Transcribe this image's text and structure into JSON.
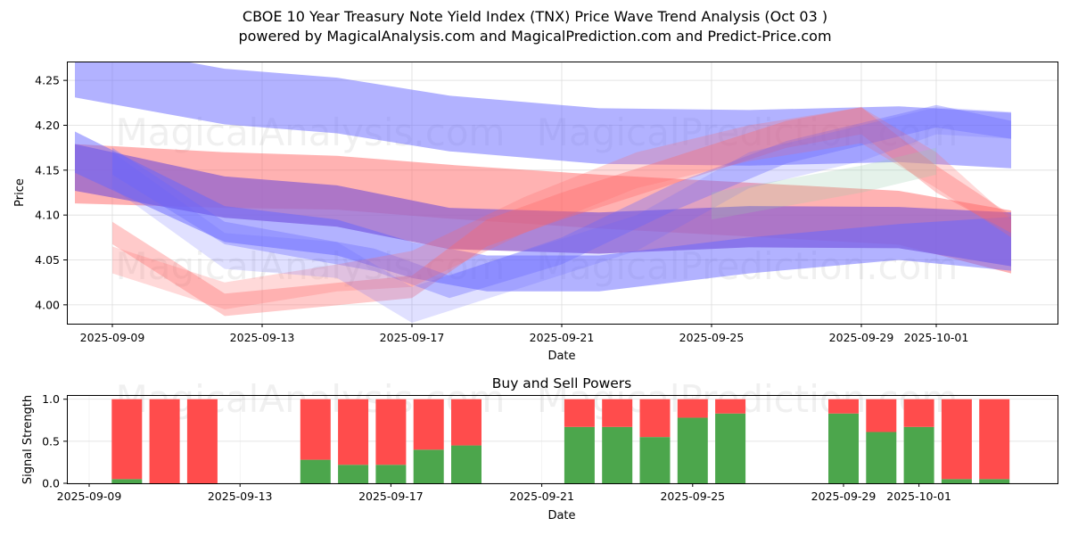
{
  "header": {
    "title": "CBOE 10 Year Treasury Note Yield Index (TNX) Price Wave Trend Analysis (Oct 03 )",
    "subtitle": "powered by MagicalAnalysis.com and MagicalPrediction.com and Predict-Price.com"
  },
  "watermarks": [
    "MagicalAnalysis.com",
    "MagicalPrediction.com"
  ],
  "colors": {
    "blue_band": "#6666ff",
    "red_band": "#ff6666",
    "purple_band": "#9966cc",
    "green_band": "#99ccaa",
    "buy": "#4ca64c",
    "sell": "#ff4c4c",
    "grid": "#dddddd"
  },
  "chart_data": [
    {
      "type": "area",
      "title": "",
      "xlabel": "Date",
      "ylabel": "Price",
      "xlim": [
        "2025-09-07.8",
        "2025-10-04.3"
      ],
      "ylim": [
        3.979,
        4.271
      ],
      "grid": true,
      "xticks": [
        "2025-09-09",
        "2025-09-13",
        "2025-09-17",
        "2025-09-21",
        "2025-09-25",
        "2025-09-29",
        "2025-10-01"
      ],
      "yticks": [
        "4.00",
        "4.05",
        "4.10",
        "4.15",
        "4.20",
        "4.25"
      ],
      "bands": [
        {
          "name": "long-term-upper-blue",
          "color": "blue",
          "opacity": 0.5,
          "x": [
            "2025-09-08",
            "2025-09-12",
            "2025-09-15",
            "2025-09-18",
            "2025-09-22",
            "2025-09-26",
            "2025-09-30",
            "2025-10-03"
          ],
          "center": [
            4.262,
            4.232,
            4.222,
            4.202,
            4.188,
            4.186,
            4.19,
            4.183
          ],
          "width": [
            0.062,
            0.062,
            0.062,
            0.062,
            0.062,
            0.062,
            0.062,
            0.062
          ]
        },
        {
          "name": "long-term-red",
          "color": "red",
          "opacity": 0.5,
          "x": [
            "2025-09-08",
            "2025-09-12",
            "2025-09-15",
            "2025-09-18",
            "2025-09-22",
            "2025-09-26",
            "2025-09-30",
            "2025-10-03"
          ],
          "center": [
            4.146,
            4.139,
            4.136,
            4.126,
            4.115,
            4.106,
            4.097,
            4.07
          ],
          "width": [
            0.066,
            0.062,
            0.06,
            0.06,
            0.06,
            0.06,
            0.06,
            0.07
          ]
        },
        {
          "name": "long-term-purple",
          "color": "purple",
          "opacity": 0.8,
          "x": [
            "2025-09-08",
            "2025-09-12",
            "2025-09-15",
            "2025-09-18",
            "2025-09-22",
            "2025-09-26",
            "2025-09-30",
            "2025-10-03"
          ],
          "center": [
            4.153,
            4.12,
            4.11,
            4.085,
            4.08,
            4.087,
            4.086,
            4.073
          ],
          "width": [
            0.052,
            0.046,
            0.046,
            0.046,
            0.046,
            0.046,
            0.046,
            0.06
          ]
        },
        {
          "name": "long-term-lower-blue",
          "color": "blue",
          "opacity": 0.5,
          "x": [
            "2025-09-08",
            "2025-09-12",
            "2025-09-15",
            "2025-09-17",
            "2025-09-19",
            "2025-09-22",
            "2025-09-26",
            "2025-09-30",
            "2025-10-03"
          ],
          "center": [
            4.17,
            4.09,
            4.075,
            4.05,
            4.035,
            4.035,
            4.055,
            4.07,
            4.068
          ],
          "width": [
            0.046,
            0.04,
            0.04,
            0.04,
            0.04,
            0.04,
            0.04,
            0.04,
            0.06
          ]
        },
        {
          "name": "mid-term-red-rising",
          "color": "red",
          "opacity": 0.35,
          "x": [
            "2025-09-09",
            "2025-09-12",
            "2025-09-17",
            "2025-09-19",
            "2025-09-21",
            "2025-09-24",
            "2025-09-27",
            "2025-09-29",
            "2025-10-01",
            "2025-10-03"
          ],
          "center": [
            4.08,
            4.0,
            4.02,
            4.08,
            4.11,
            4.15,
            4.19,
            4.205,
            4.14,
            4.09
          ],
          "width": [
            0.025,
            0.025,
            0.025,
            0.03,
            0.03,
            0.03,
            0.03,
            0.03,
            0.03,
            0.02
          ]
        },
        {
          "name": "mid-term-blue-rising",
          "color": "blue",
          "opacity": 0.35,
          "x": [
            "2025-09-09",
            "2025-09-12",
            "2025-09-16",
            "2025-09-18",
            "2025-09-21",
            "2025-09-24",
            "2025-09-27",
            "2025-09-30",
            "2025-10-01",
            "2025-10-03"
          ],
          "center": [
            4.16,
            4.08,
            4.05,
            4.02,
            4.06,
            4.12,
            4.17,
            4.2,
            4.21,
            4.195
          ],
          "width": [
            0.03,
            0.025,
            0.025,
            0.025,
            0.03,
            0.03,
            0.025,
            0.025,
            0.025,
            0.02
          ]
        },
        {
          "name": "short-term-red-a",
          "color": "red",
          "opacity": 0.25,
          "x": [
            "2025-09-09",
            "2025-09-12",
            "2025-09-15",
            "2025-09-17",
            "2025-09-20",
            "2025-09-23",
            "2025-09-26",
            "2025-09-29",
            "2025-10-01",
            "2025-10-03"
          ],
          "center": [
            4.05,
            4.01,
            4.03,
            4.04,
            4.1,
            4.15,
            4.18,
            4.2,
            4.15,
            4.085
          ],
          "width": [
            0.03,
            0.03,
            0.03,
            0.04,
            0.04,
            0.04,
            0.04,
            0.04,
            0.04,
            0.02
          ]
        },
        {
          "name": "short-term-blue-a",
          "color": "blue",
          "opacity": 0.2,
          "x": [
            "2025-09-09",
            "2025-09-12",
            "2025-09-15",
            "2025-09-17",
            "2025-09-20",
            "2025-09-23",
            "2025-09-26",
            "2025-09-29",
            "2025-10-01",
            "2025-10-03"
          ],
          "center": [
            4.15,
            4.06,
            4.05,
            4.0,
            4.04,
            4.08,
            4.15,
            4.18,
            4.205,
            4.2
          ],
          "width": [
            0.04,
            0.04,
            0.04,
            0.04,
            0.04,
            0.04,
            0.04,
            0.04,
            0.03,
            0.03
          ]
        },
        {
          "name": "short-term-green",
          "color": "green",
          "opacity": 0.25,
          "x": [
            "2025-09-25",
            "2025-09-29",
            "2025-10-01"
          ],
          "center": [
            4.11,
            4.14,
            4.16
          ],
          "width": [
            0.03,
            0.03,
            0.03
          ]
        }
      ]
    },
    {
      "type": "bar",
      "stacked": true,
      "title": "Buy and Sell Powers",
      "xlabel": "Date",
      "ylabel": "Signal Strength",
      "ylim": [
        0,
        1.05
      ],
      "grid": true,
      "xticks": [
        "2025-09-09",
        "2025-09-13",
        "2025-09-17",
        "2025-09-21",
        "2025-09-25",
        "2025-09-29",
        "2025-10-01"
      ],
      "yticks": [
        "0.0",
        "0.5",
        "1.0"
      ],
      "categories": [
        "2025-09-10",
        "2025-09-11",
        "2025-09-12",
        "2025-09-15",
        "2025-09-16",
        "2025-09-17",
        "2025-09-18",
        "2025-09-19",
        "2025-09-22",
        "2025-09-23",
        "2025-09-24",
        "2025-09-25",
        "2025-09-26",
        "2025-09-29",
        "2025-09-30",
        "2025-10-01",
        "2025-10-02",
        "2025-10-03"
      ],
      "series": [
        {
          "name": "Buy Power",
          "values": [
            0.05,
            0.0,
            0.0,
            0.28,
            0.22,
            0.22,
            0.4,
            0.45,
            0.67,
            0.67,
            0.55,
            0.78,
            0.83,
            0.83,
            0.61,
            0.67,
            0.05,
            0.05
          ]
        },
        {
          "name": "Sell Power",
          "values": [
            0.95,
            1.0,
            1.0,
            0.72,
            0.78,
            0.78,
            0.6,
            0.55,
            0.33,
            0.33,
            0.45,
            0.22,
            0.17,
            0.17,
            0.39,
            0.33,
            0.95,
            0.95
          ]
        }
      ]
    }
  ]
}
